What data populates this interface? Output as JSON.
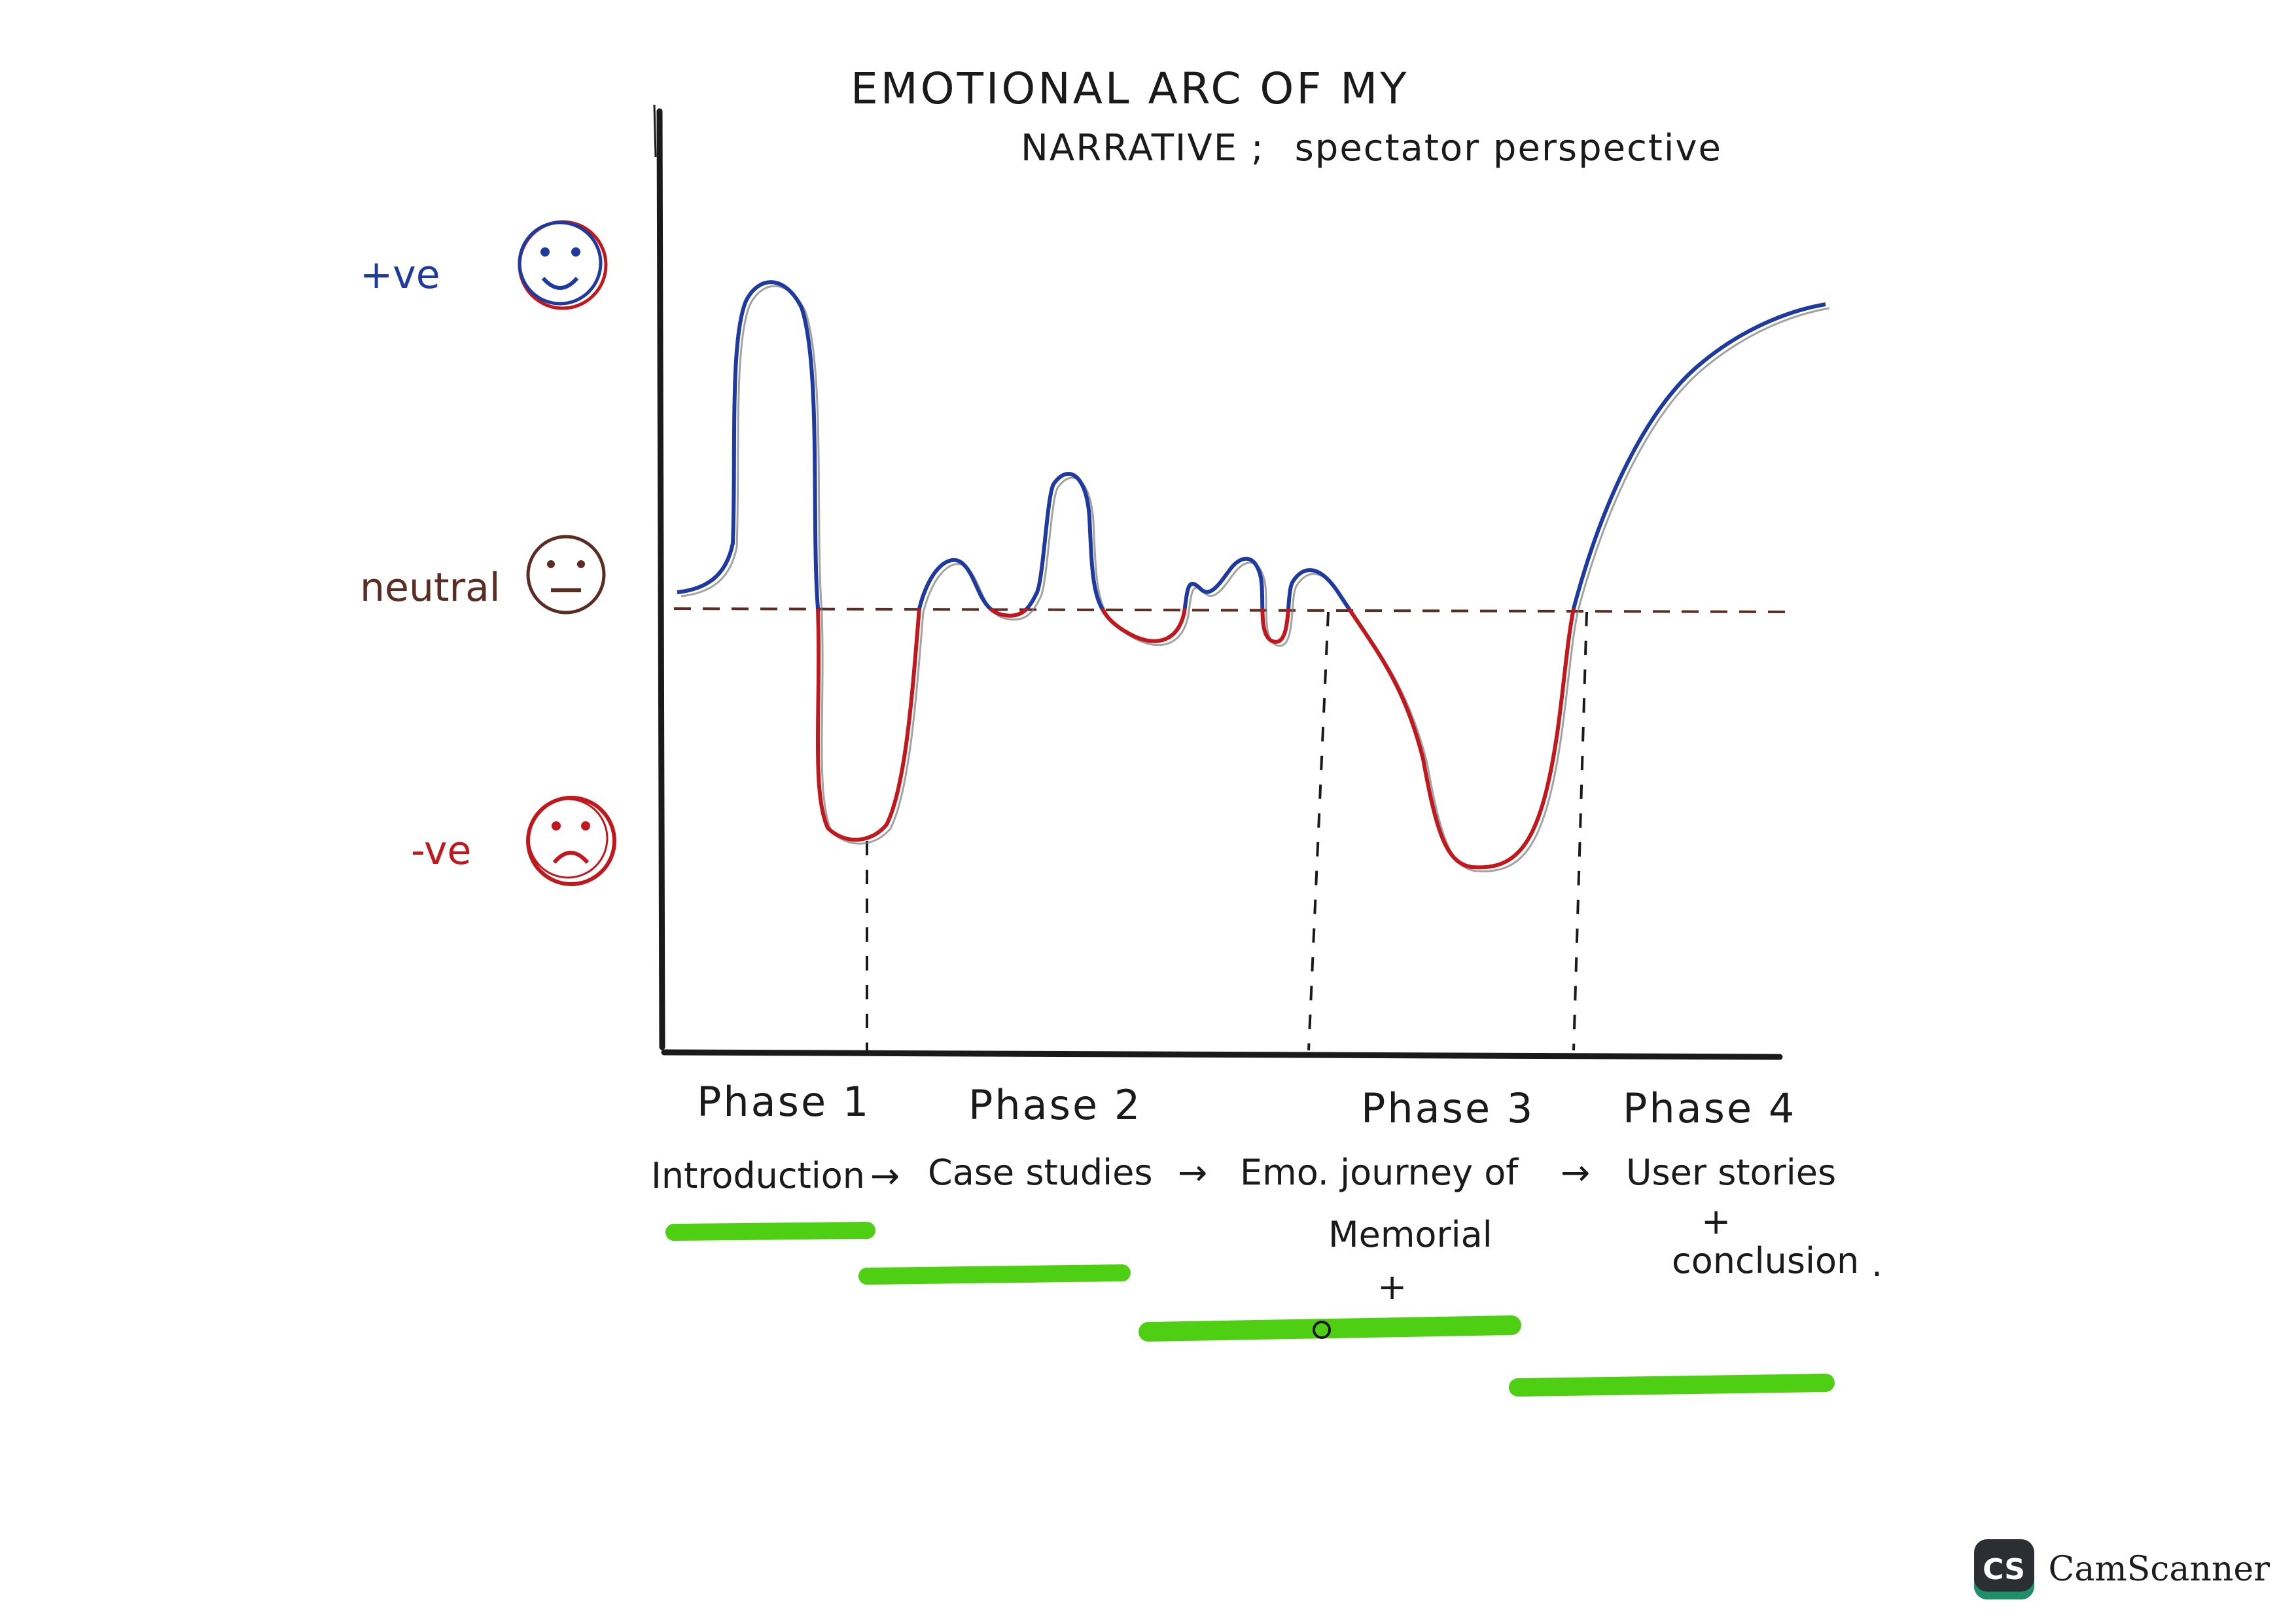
{
  "title": {
    "line1": "EMOTIONAL ARC OF MY",
    "line2_caps": "NARRATIVE ;",
    "line2_rest": "spectator perspective"
  },
  "y_levels": [
    {
      "label": "+ve",
      "face": "happy-face-icon",
      "color": "#1f3a9e"
    },
    {
      "label": "neutral",
      "face": "neutral-face-icon",
      "color": "#5a2c22"
    },
    {
      "label": "-ve",
      "face": "sad-face-icon",
      "color": "#c0181c"
    }
  ],
  "phases": [
    {
      "label": "Phase 1"
    },
    {
      "label": "Phase 2"
    },
    {
      "label": "Phase 3"
    },
    {
      "label": "Phase 4"
    }
  ],
  "stages": {
    "s1": "Introduction",
    "s2": "Case studies",
    "s3a": "Emo. journey of",
    "s3b": "Memorial",
    "s3c": "+",
    "s4a": "User stories",
    "s4b": "+",
    "s4c": "conclusion",
    "s4d": ".",
    "arrow": "→"
  },
  "colors": {
    "positive": "#1f3a9e",
    "negative": "#c0181c",
    "ink": "#1a1a1a",
    "highlight": "#4fcf14",
    "face_ink": "#5a2c22"
  },
  "watermark": {
    "logo": "CS",
    "text": "CamScanner"
  }
}
